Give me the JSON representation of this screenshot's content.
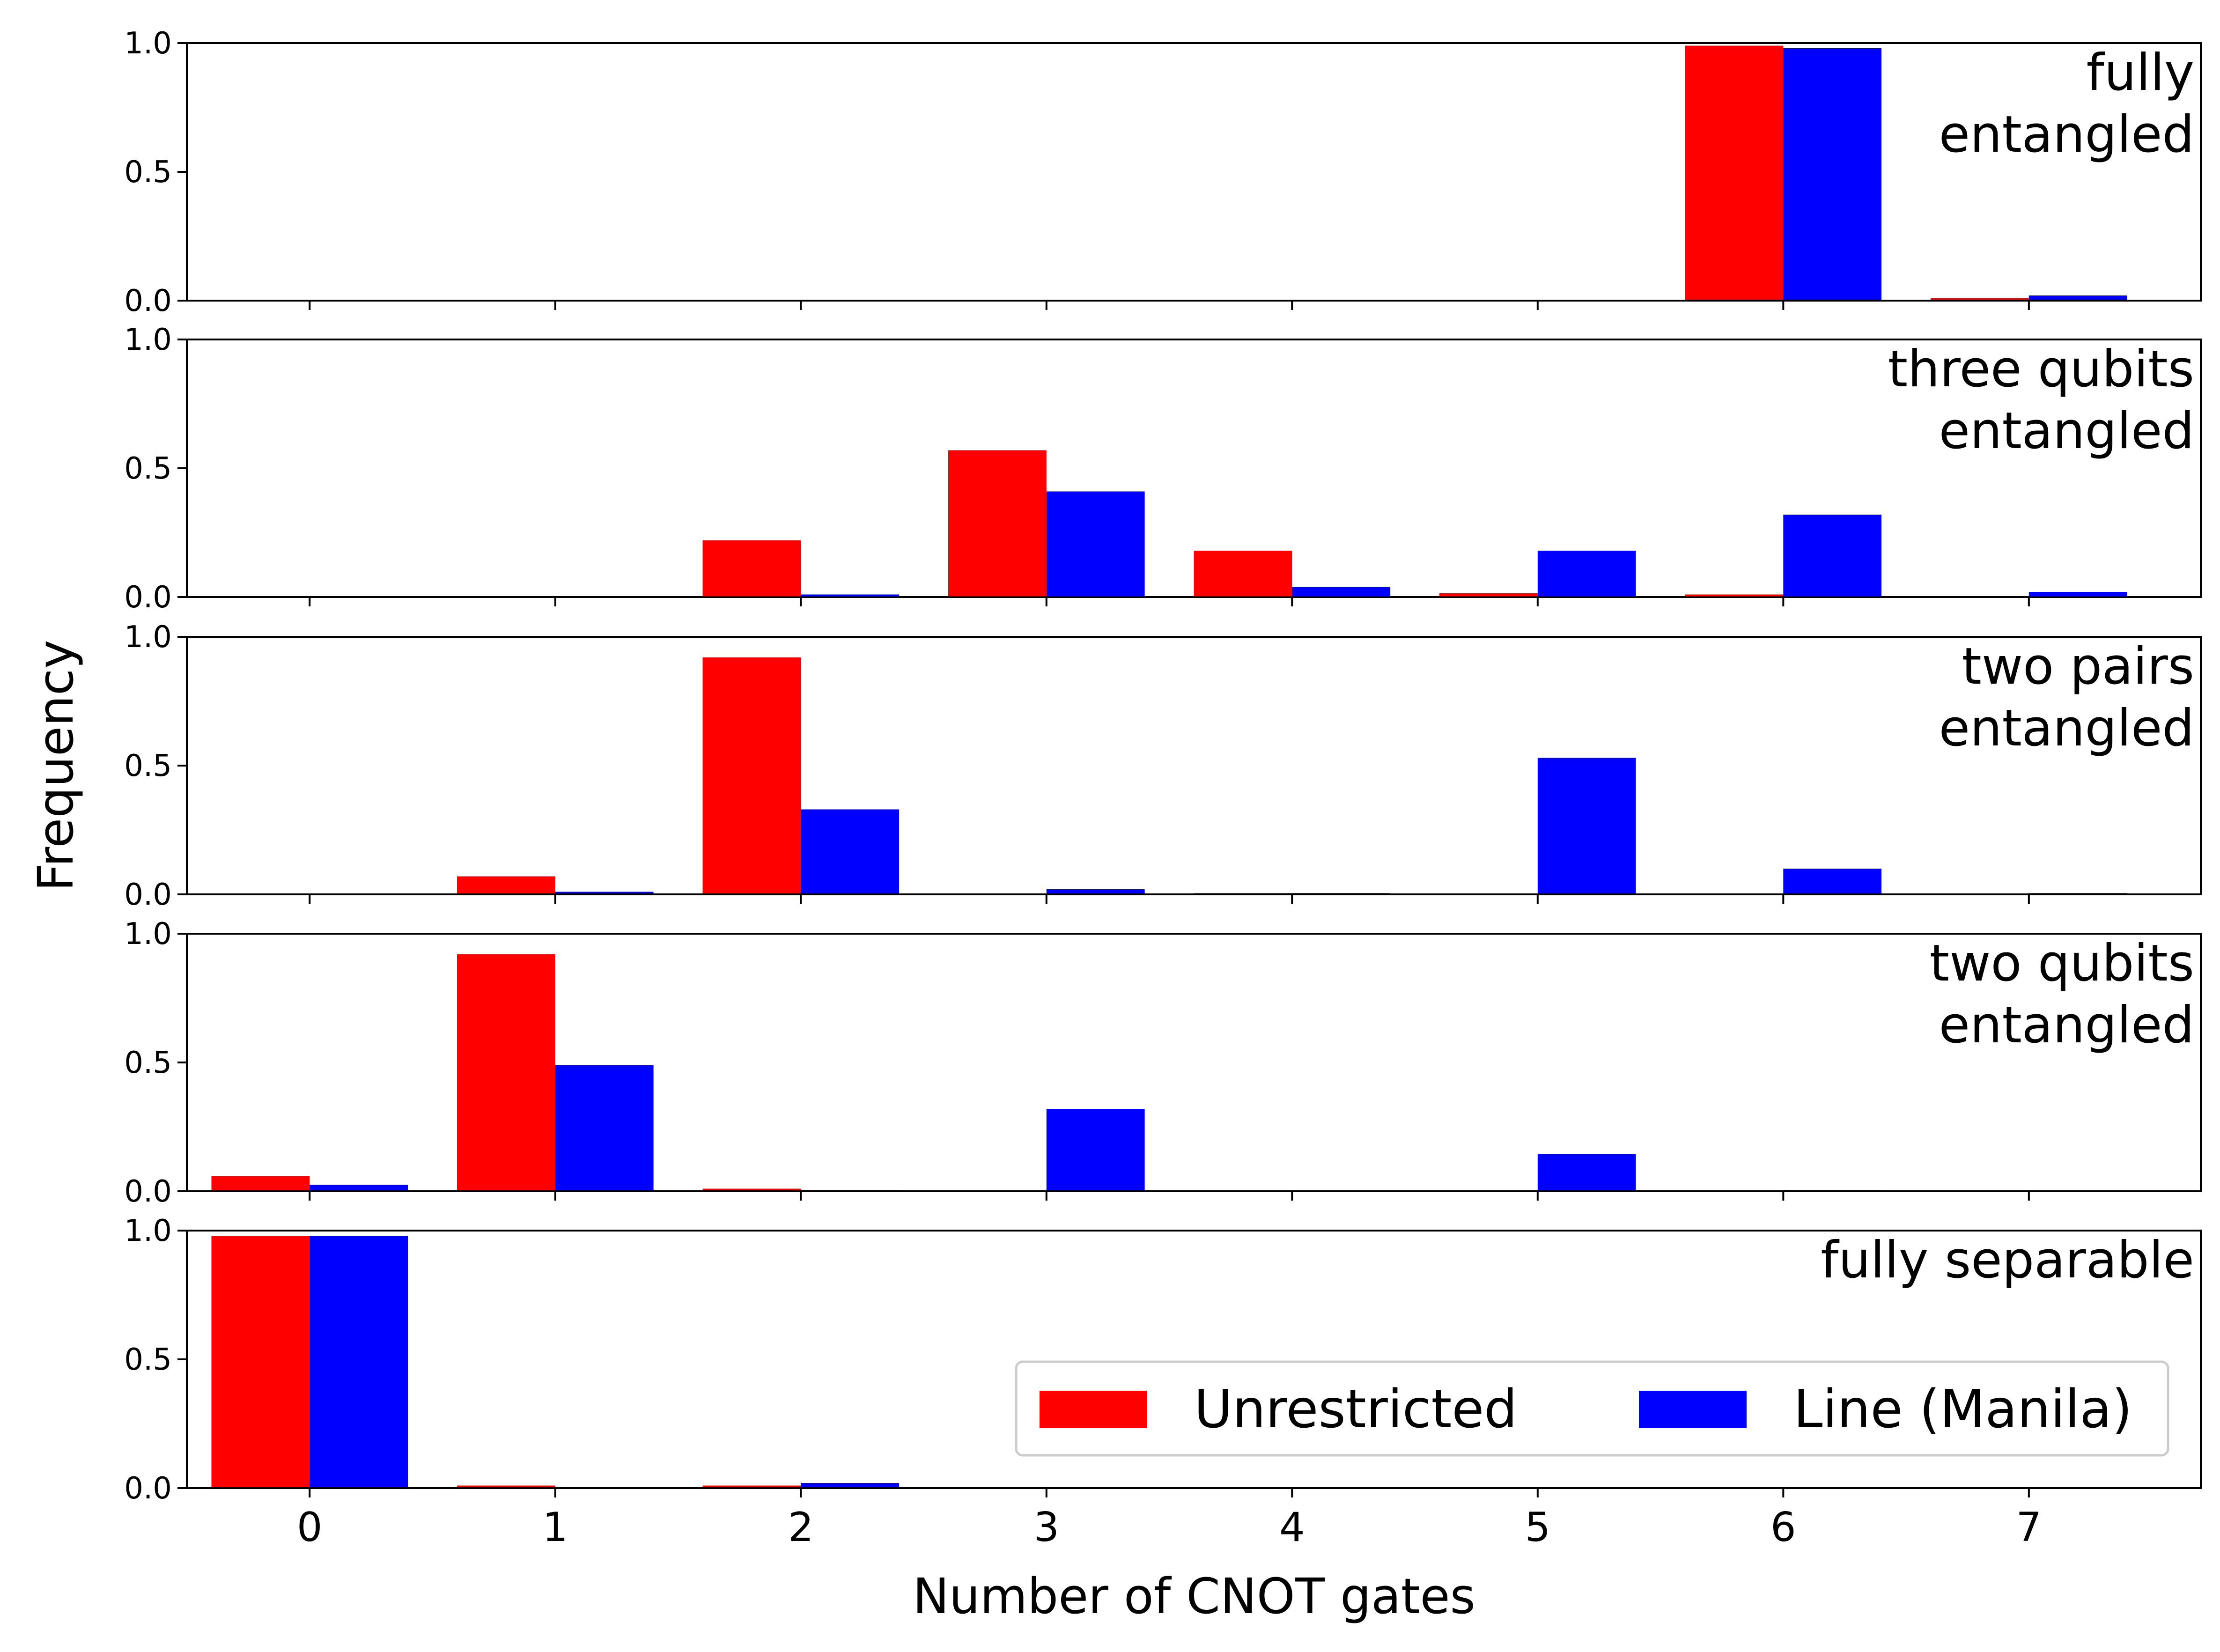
{
  "chart_data": {
    "type": "bar",
    "layout": "stacked-subplots",
    "xlabel": "Number of CNOT gates",
    "ylabel": "Frequency",
    "x": [
      0,
      1,
      2,
      3,
      4,
      5,
      6,
      7
    ],
    "x_tick_labels": [
      "0",
      "1",
      "2",
      "3",
      "4",
      "5",
      "6",
      "7"
    ],
    "ylim": [
      0,
      1.0
    ],
    "y_ticks": [
      0.0,
      0.5,
      1.0
    ],
    "y_tick_labels": [
      "0.0",
      "0.5",
      "1.0"
    ],
    "xlim": [
      -0.5,
      7.7
    ],
    "legend": {
      "position": "lower-right of bottom panel",
      "entries": [
        {
          "label": "Unrestricted",
          "color": "#ff0000"
        },
        {
          "label": "Line (Manila)",
          "color": "#0000ff"
        }
      ]
    },
    "panels": [
      {
        "label_lines": [
          "fully",
          "entangled"
        ],
        "series": [
          {
            "name": "Unrestricted",
            "color": "#ff0000",
            "values": [
              0,
              0,
              0,
              0,
              0,
              0,
              0.99,
              0.01
            ]
          },
          {
            "name": "Line (Manila)",
            "color": "#0000ff",
            "values": [
              0,
              0,
              0,
              0,
              0,
              0,
              0.98,
              0.02
            ]
          }
        ]
      },
      {
        "label_lines": [
          "three qubits",
          "entangled"
        ],
        "series": [
          {
            "name": "Unrestricted",
            "color": "#ff0000",
            "values": [
              0,
              0,
              0.22,
              0.57,
              0.18,
              0.015,
              0.01,
              0
            ]
          },
          {
            "name": "Line (Manila)",
            "color": "#0000ff",
            "values": [
              0,
              0,
              0.01,
              0.41,
              0.04,
              0.18,
              0.32,
              0.02
            ]
          }
        ]
      },
      {
        "label_lines": [
          "two pairs",
          "entangled"
        ],
        "series": [
          {
            "name": "Unrestricted",
            "color": "#ff0000",
            "values": [
              0,
              0.07,
              0.92,
              0,
              0.005,
              0,
              0,
              0
            ]
          },
          {
            "name": "Line (Manila)",
            "color": "#0000ff",
            "values": [
              0,
              0.01,
              0.33,
              0.02,
              0.005,
              0.53,
              0.1,
              0.005
            ]
          }
        ]
      },
      {
        "label_lines": [
          "two qubits",
          "entangled"
        ],
        "series": [
          {
            "name": "Unrestricted",
            "color": "#ff0000",
            "values": [
              0.06,
              0.92,
              0.01,
              0,
              0,
              0,
              0,
              0
            ]
          },
          {
            "name": "Line (Manila)",
            "color": "#0000ff",
            "values": [
              0.025,
              0.49,
              0.005,
              0.32,
              0,
              0.145,
              0.005,
              0
            ]
          }
        ]
      },
      {
        "label_lines": [
          "fully separable"
        ],
        "series": [
          {
            "name": "Unrestricted",
            "color": "#ff0000",
            "values": [
              0.98,
              0.01,
              0.01,
              0,
              0,
              0,
              0,
              0
            ]
          },
          {
            "name": "Line (Manila)",
            "color": "#0000ff",
            "values": [
              0.98,
              0,
              0.02,
              0,
              0,
              0,
              0,
              0
            ]
          }
        ]
      }
    ]
  }
}
